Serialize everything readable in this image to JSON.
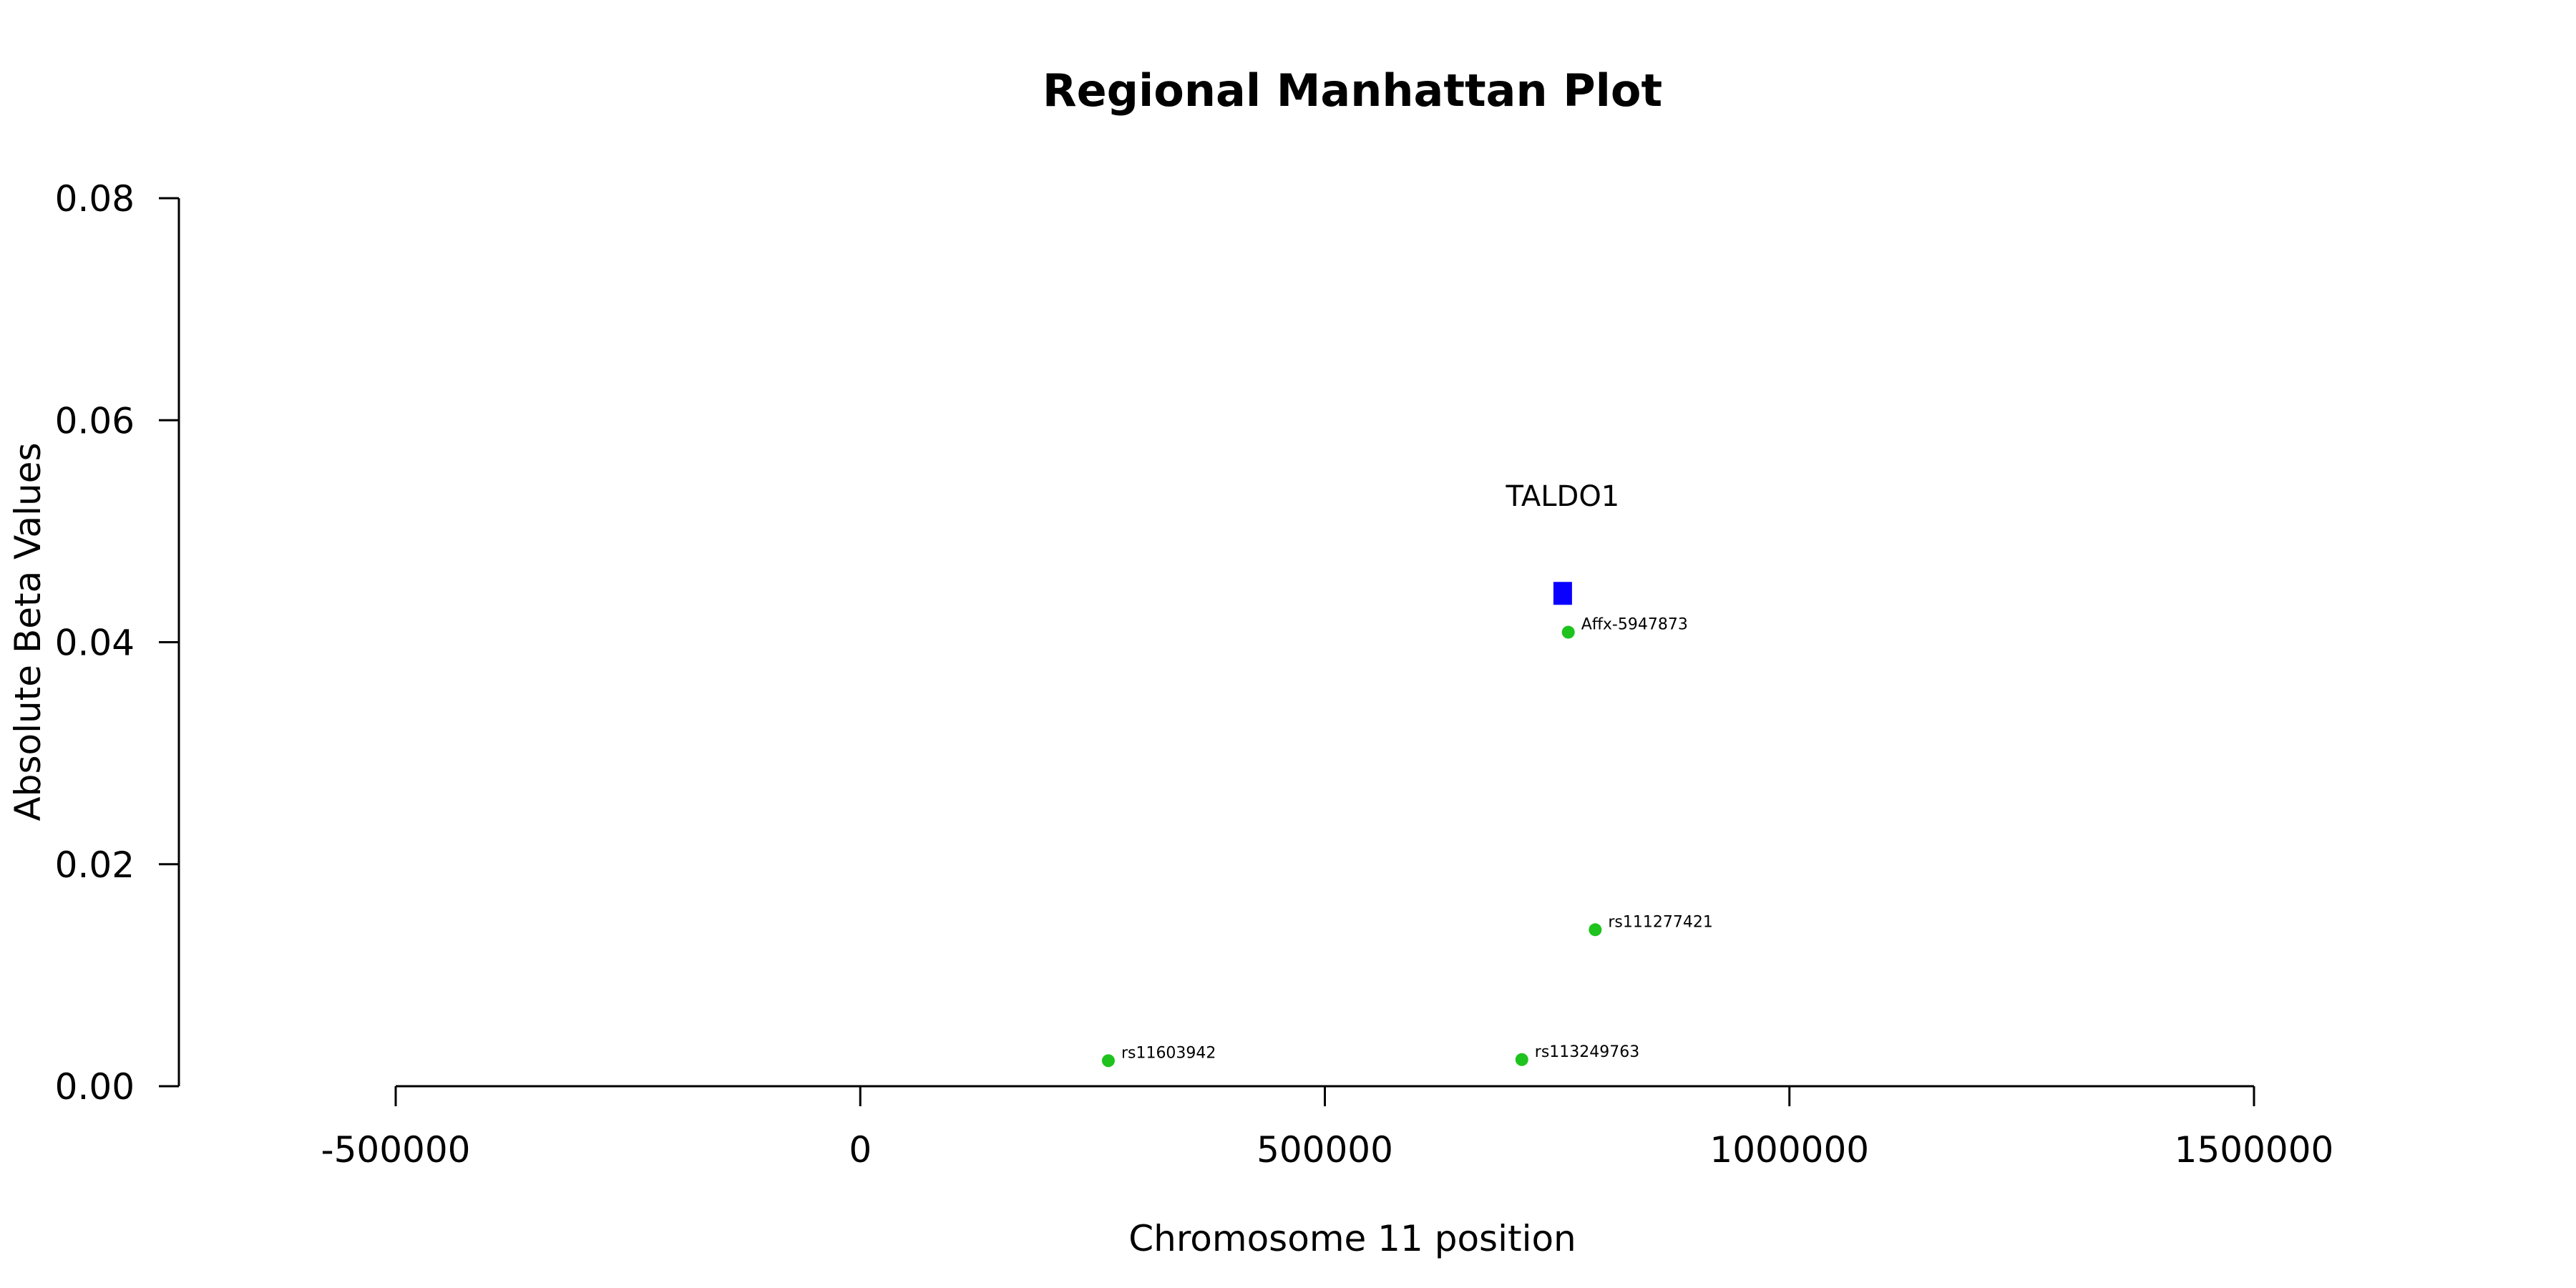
{
  "chart_data": {
    "type": "scatter",
    "title": "Regional Manhattan Plot",
    "xlabel": "Chromosome 11 position",
    "ylabel": "Absolute Beta Values",
    "xlim": [
      -500000,
      1500000
    ],
    "ylim": [
      0,
      0.08
    ],
    "xticks": [
      -500000,
      0,
      500000,
      1000000,
      1500000
    ],
    "xtick_labels": [
      "-500000",
      "0",
      "500000",
      "1000000",
      "1500000"
    ],
    "yticks": [
      0,
      0.02,
      0.04,
      0.06,
      0.08
    ],
    "ytick_labels": [
      "0.00",
      "0.02",
      "0.04",
      "0.06",
      "0.08"
    ],
    "grid": false,
    "points": [
      {
        "label": "rs11603942",
        "x": 267000,
        "y": 0.0023
      },
      {
        "label": "rs113249763",
        "x": 712000,
        "y": 0.0024
      },
      {
        "label": "Affx-5947873",
        "x": 762000,
        "y": 0.0409
      },
      {
        "label": "rs111277421",
        "x": 791000,
        "y": 0.0141
      }
    ],
    "point_color": "#1ec31e",
    "genes": [
      {
        "name": "TALDO1",
        "start": 746000,
        "end": 766000,
        "y": 0.0444
      }
    ],
    "gene_color": "#0a00ff"
  }
}
